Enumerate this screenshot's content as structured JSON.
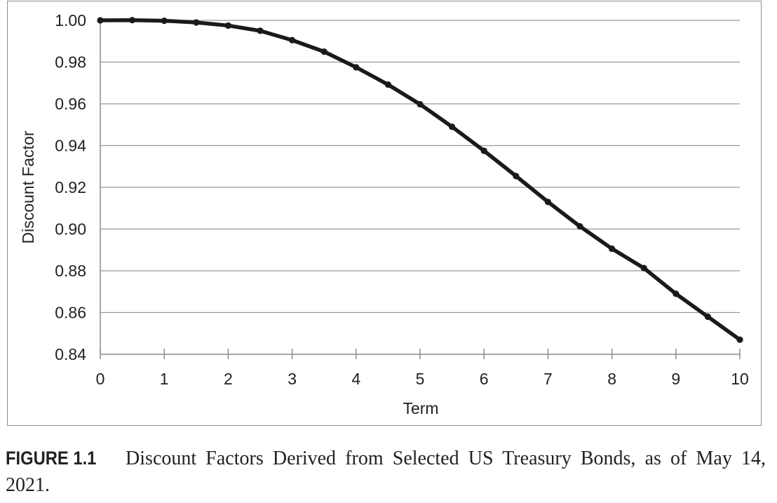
{
  "chart_data": {
    "type": "line",
    "title": "",
    "xlabel": "Term",
    "ylabel": "Discount Factor",
    "xlim": [
      0,
      10
    ],
    "ylim": [
      0.84,
      1.0
    ],
    "x_ticks": [
      0,
      1,
      2,
      3,
      4,
      5,
      6,
      7,
      8,
      9,
      10
    ],
    "y_ticks": [
      0.84,
      0.86,
      0.88,
      0.9,
      0.92,
      0.94,
      0.96,
      0.98,
      1.0
    ],
    "y_tick_labels": [
      "0.84",
      "0.86",
      "0.88",
      "0.90",
      "0.92",
      "0.94",
      "0.96",
      "0.98",
      "1.00"
    ],
    "x_tick_labels": [
      "0",
      "1",
      "2",
      "3",
      "4",
      "5",
      "6",
      "7",
      "8",
      "9",
      "10"
    ],
    "grid": "horizontal",
    "legend": "none",
    "series": [
      {
        "color": "#1a1a1a",
        "x": [
          0,
          0.5,
          1,
          1.5,
          2,
          2.5,
          3,
          3.5,
          4,
          4.5,
          5,
          5.5,
          6,
          6.5,
          7,
          7.5,
          8,
          8.5,
          9,
          9.5,
          10
        ],
        "y": [
          1.0,
          1.0001,
          0.9998,
          0.999,
          0.9975,
          0.995,
          0.9905,
          0.985,
          0.9775,
          0.9692,
          0.9598,
          0.949,
          0.9375,
          0.9254,
          0.913,
          0.9013,
          0.8906,
          0.8813,
          0.869,
          0.858,
          0.847
        ]
      }
    ]
  },
  "caption": {
    "label": "FIGURE 1.1",
    "text": "Discount Factors Derived from Selected US Treasury Bonds, as of May 14, 2021."
  }
}
